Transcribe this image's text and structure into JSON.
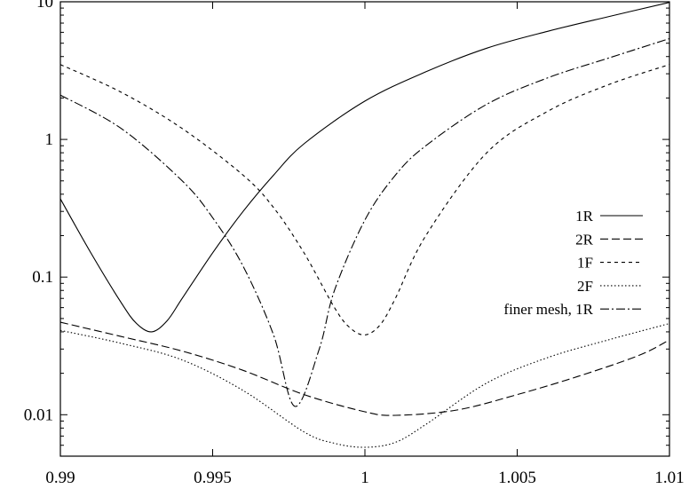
{
  "chart_data": {
    "type": "line",
    "title": "",
    "xlabel": "",
    "ylabel": "",
    "xlim": [
      0.99,
      1.01
    ],
    "ylim": [
      0.005,
      10
    ],
    "yscale": "log",
    "grid": false,
    "legend_position": "right",
    "xticks": [
      {
        "value": 0.99,
        "label": "0.99"
      },
      {
        "value": 0.995,
        "label": "0.995"
      },
      {
        "value": 1.0,
        "label": "1"
      },
      {
        "value": 1.005,
        "label": "1.005"
      },
      {
        "value": 1.01,
        "label": "1.01"
      }
    ],
    "yticks": [
      {
        "value": 0.01,
        "label": "0.01"
      },
      {
        "value": 0.1,
        "label": "0.1"
      },
      {
        "value": 1,
        "label": "1"
      },
      {
        "value": 10,
        "label": "10"
      }
    ],
    "series": [
      {
        "name": "1R",
        "dash": "",
        "points": [
          [
            0.99,
            0.37
          ],
          [
            0.991,
            0.15
          ],
          [
            0.992,
            0.065
          ],
          [
            0.9925,
            0.046
          ],
          [
            0.993,
            0.04
          ],
          [
            0.9935,
            0.048
          ],
          [
            0.994,
            0.07
          ],
          [
            0.995,
            0.15
          ],
          [
            0.996,
            0.3
          ],
          [
            0.997,
            0.55
          ],
          [
            0.998,
            0.93
          ],
          [
            1.0,
            1.9
          ],
          [
            1.002,
            3.1
          ],
          [
            1.004,
            4.6
          ],
          [
            1.006,
            6.1
          ],
          [
            1.008,
            7.8
          ],
          [
            1.01,
            9.9
          ]
        ]
      },
      {
        "name": "2R",
        "dash": "9,4",
        "points": [
          [
            0.99,
            0.047
          ],
          [
            0.992,
            0.037
          ],
          [
            0.994,
            0.029
          ],
          [
            0.996,
            0.021
          ],
          [
            0.998,
            0.014
          ],
          [
            1.0,
            0.0105
          ],
          [
            1.001,
            0.0099
          ],
          [
            1.003,
            0.0108
          ],
          [
            1.005,
            0.014
          ],
          [
            1.007,
            0.019
          ],
          [
            1.009,
            0.027
          ],
          [
            1.01,
            0.035
          ]
        ]
      },
      {
        "name": "1F",
        "dash": "4,4",
        "points": [
          [
            0.99,
            3.5
          ],
          [
            0.992,
            2.2
          ],
          [
            0.994,
            1.2
          ],
          [
            0.996,
            0.55
          ],
          [
            0.997,
            0.32
          ],
          [
            0.998,
            0.15
          ],
          [
            0.999,
            0.06
          ],
          [
            0.9995,
            0.043
          ],
          [
            1.0,
            0.038
          ],
          [
            1.0005,
            0.045
          ],
          [
            1.001,
            0.07
          ],
          [
            1.002,
            0.2
          ],
          [
            1.004,
            0.8
          ],
          [
            1.006,
            1.6
          ],
          [
            1.008,
            2.5
          ],
          [
            1.01,
            3.5
          ]
        ]
      },
      {
        "name": "2F",
        "dash": "1.5,2.5",
        "points": [
          [
            0.99,
            0.041
          ],
          [
            0.992,
            0.033
          ],
          [
            0.994,
            0.025
          ],
          [
            0.996,
            0.015
          ],
          [
            0.998,
            0.0075
          ],
          [
            0.999,
            0.0062
          ],
          [
            1.0,
            0.0058
          ],
          [
            1.001,
            0.0063
          ],
          [
            1.002,
            0.0085
          ],
          [
            1.004,
            0.017
          ],
          [
            1.006,
            0.026
          ],
          [
            1.008,
            0.035
          ],
          [
            1.01,
            0.046
          ]
        ]
      },
      {
        "name": "finer mesh, 1R",
        "dash": "10,3,2,3",
        "points": [
          [
            0.99,
            2.1
          ],
          [
            0.992,
            1.2
          ],
          [
            0.994,
            0.5
          ],
          [
            0.995,
            0.27
          ],
          [
            0.996,
            0.12
          ],
          [
            0.997,
            0.038
          ],
          [
            0.9977,
            0.0115
          ],
          [
            0.9985,
            0.03
          ],
          [
            0.999,
            0.08
          ],
          [
            1.0,
            0.26
          ],
          [
            1.001,
            0.55
          ],
          [
            1.002,
            0.9
          ],
          [
            1.004,
            1.8
          ],
          [
            1.006,
            2.8
          ],
          [
            1.008,
            3.9
          ],
          [
            1.01,
            5.4
          ]
        ]
      }
    ]
  }
}
